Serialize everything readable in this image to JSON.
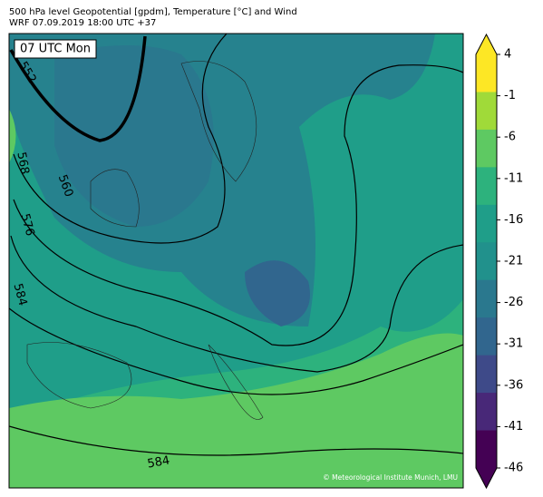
{
  "header": {
    "title": "500 hPa level Geopotential [gpdm], Temperature [°C] and Wind",
    "subtitle": "WRF 07.09.2019 18:00 UTC +37"
  },
  "map": {
    "time_label": "07 UTC Mon",
    "contour_labels": [
      "552",
      "560",
      "568",
      "576",
      "584",
      "584"
    ],
    "credit": "© Meteorological Institute Munich, LMU"
  },
  "colorbar": {
    "ticks": [
      4,
      -1,
      -6,
      -11,
      -16,
      -21,
      -26,
      -31,
      -36,
      -41,
      -46
    ],
    "colors": [
      "#fde725",
      "#a0da39",
      "#5ec962",
      "#2db27d",
      "#1f9e89",
      "#21918c",
      "#2a788e",
      "#31668e",
      "#3e4a89",
      "#482878",
      "#440154"
    ],
    "extend_top": "#fde725",
    "extend_bottom": "#440154"
  }
}
